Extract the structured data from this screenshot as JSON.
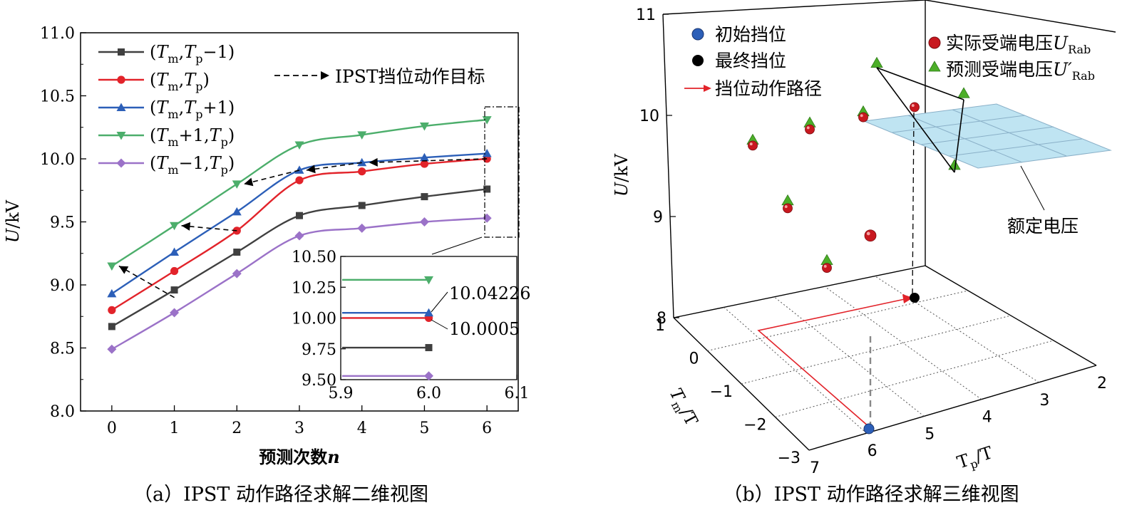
{
  "chart_data": [
    {
      "type": "line",
      "title": "",
      "caption": "（a）IPST 动作路径求解二维视图",
      "xlabel": "预测次数n",
      "ylabel": "U/kV",
      "xlim": [
        -0.5,
        6.5
      ],
      "ylim": [
        8.0,
        11.0
      ],
      "xticks": [
        "0",
        "1",
        "2",
        "3",
        "4",
        "5",
        "6"
      ],
      "yticks": [
        "8.0",
        "8.5",
        "9.0",
        "9.5",
        "10.0",
        "10.5",
        "11.0"
      ],
      "x": [
        0,
        1,
        2,
        3,
        4,
        5,
        6
      ],
      "series": [
        {
          "name": "(Tm,Tp−1)",
          "label_base": [
            "T",
            "m",
            "T",
            "p",
            "−1"
          ],
          "color": "#404040",
          "marker": "square",
          "values": [
            8.67,
            8.96,
            9.26,
            9.55,
            9.63,
            9.7,
            9.76
          ]
        },
        {
          "name": "(Tm,Tp)",
          "label_base": [
            "T",
            "m",
            "T",
            "p",
            ""
          ],
          "color": "#e2232a",
          "marker": "circle",
          "values": [
            8.8,
            9.11,
            9.43,
            9.83,
            9.9,
            9.96,
            10.0005
          ]
        },
        {
          "name": "(Tm,Tp+1)",
          "label_base": [
            "T",
            "m",
            "T",
            "p",
            "+1"
          ],
          "color": "#2c5fb8",
          "marker": "triangle-up",
          "values": [
            8.93,
            9.26,
            9.58,
            9.91,
            9.97,
            10.01,
            10.04226
          ]
        },
        {
          "name": "(Tm+1,Tp)",
          "label_base": [
            "T",
            "m",
            "+1,",
            "T",
            "p"
          ],
          "color": "#4cae6b",
          "marker": "triangle-down",
          "values": [
            9.15,
            9.47,
            9.8,
            10.11,
            10.19,
            10.26,
            10.31
          ]
        },
        {
          "name": "(Tm−1,Tp)",
          "label_base": [
            "T",
            "m",
            "−1,",
            "T",
            "p"
          ],
          "color": "#9b72c8",
          "marker": "diamond",
          "values": [
            8.49,
            8.78,
            9.09,
            9.39,
            9.45,
            9.5,
            9.53
          ]
        }
      ],
      "arrow_legend": "IPST挡位动作目标",
      "path_arrows": [
        {
          "from": [
            6,
            10.0005
          ],
          "to": [
            4,
            9.97
          ]
        },
        {
          "from": [
            4,
            9.97
          ],
          "to": [
            3,
            9.91
          ]
        },
        {
          "from": [
            3,
            9.91
          ],
          "to": [
            2,
            9.8
          ]
        },
        {
          "from": [
            2,
            9.43
          ],
          "to": [
            1,
            9.47
          ]
        },
        {
          "from": [
            1,
            8.9
          ],
          "to": [
            0,
            9.15
          ]
        }
      ],
      "inset": {
        "xlim": [
          5.9,
          6.1
        ],
        "ylim": [
          9.5,
          10.5
        ],
        "xticks": [
          "5.9",
          "6.0",
          "6.1"
        ],
        "yticks": [
          "9.50",
          "9.75",
          "10.00",
          "10.25",
          "10.50"
        ],
        "annotations": [
          "10.04226",
          "10.0005"
        ]
      }
    },
    {
      "type": "scatter3d",
      "title": "",
      "caption": "（b）IPST 动作路径求解三维视图",
      "xlabel": "Tp/T",
      "ylabel": "Tm/T",
      "zlabel": "U/kV",
      "xticks": [
        "7",
        "6",
        "5",
        "4",
        "3",
        "2"
      ],
      "yticks": [
        "1",
        "0",
        "−1",
        "−2",
        "−3"
      ],
      "zticks": [
        "8",
        "9",
        "10",
        "11"
      ],
      "legend": [
        {
          "label": "初始挡位",
          "color": "#2c5fb8",
          "marker": "circle"
        },
        {
          "label": "最终挡位",
          "color": "#000000",
          "marker": "circle"
        },
        {
          "label": "挡位动作路径",
          "color": "#e2232a",
          "marker": "arrow"
        },
        {
          "label": "实际受端电压",
          "sym": "U",
          "sub": "Rab",
          "color": "#c8181f",
          "marker": "sphere"
        },
        {
          "label": "预测受端电压",
          "sym": "U′",
          "sub": "Rab",
          "color": "#4cae28",
          "marker": "triangle"
        }
      ],
      "annotation": "额定电压",
      "points_actual_kv": [
        9.73,
        9.11,
        8.52,
        9.89,
        10.01,
        10.11,
        8.84
      ],
      "points_predicted_kv": [
        9.75,
        9.15,
        8.56,
        9.92,
        10.03,
        10.51,
        10.21,
        9.5
      ]
    }
  ]
}
